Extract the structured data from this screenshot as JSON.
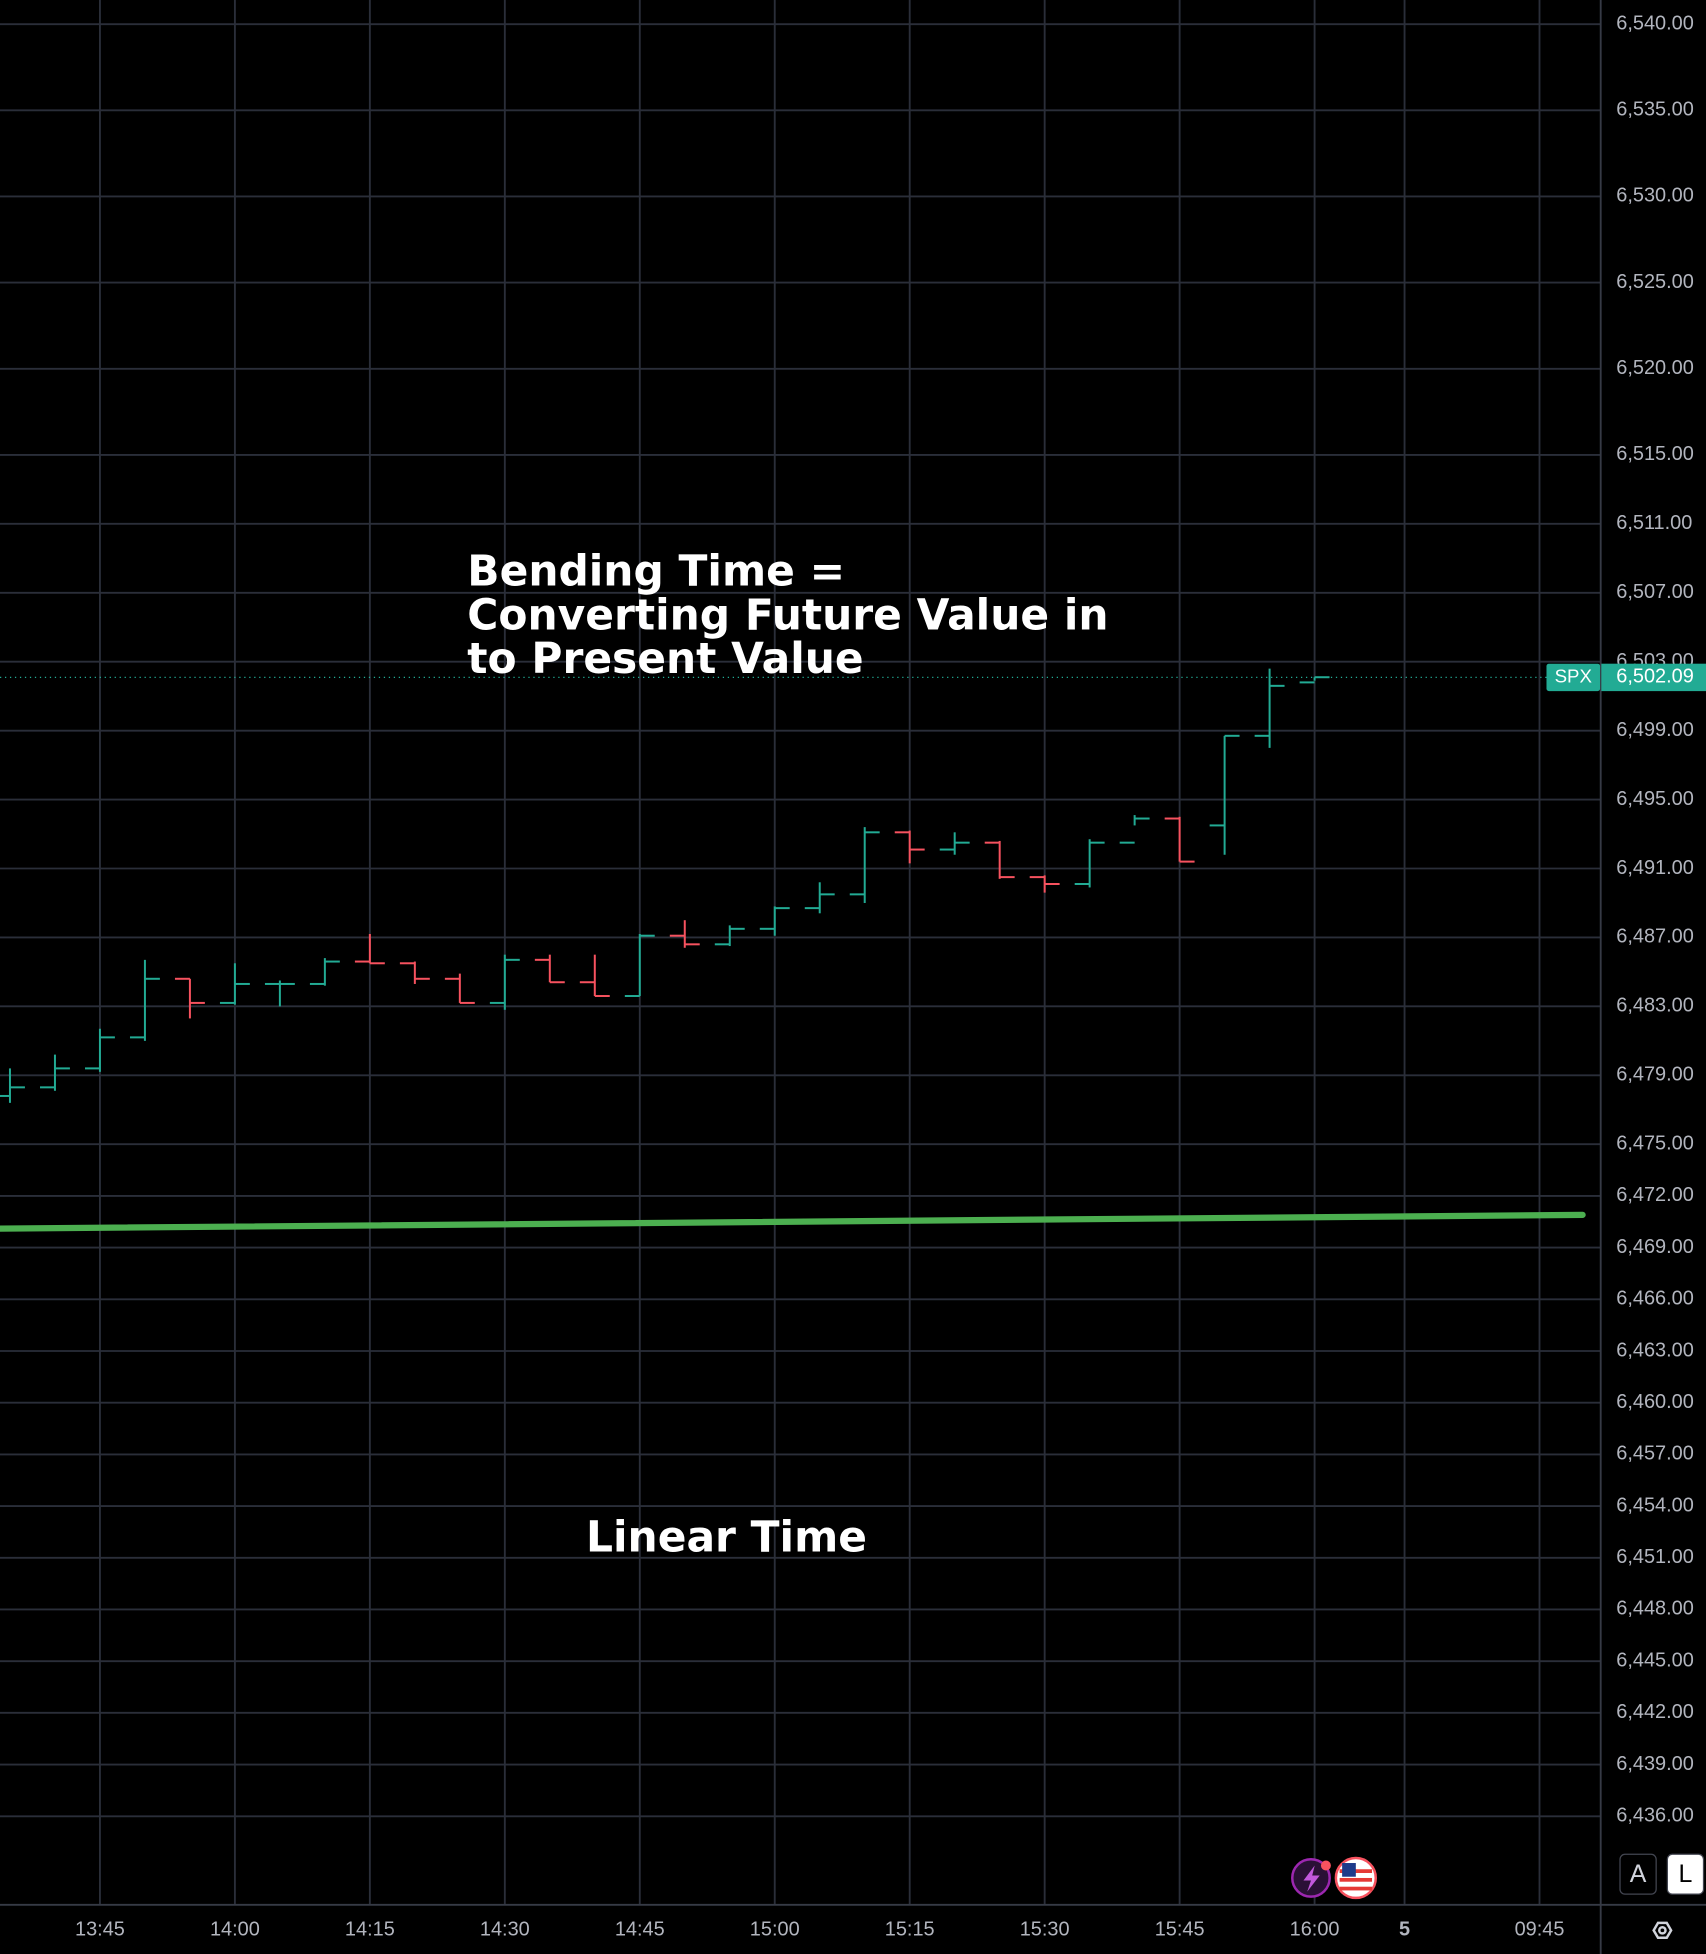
{
  "chart_data": {
    "type": "ohlc",
    "symbol": "SPX",
    "categories": [
      null,
      null,
      "13:45",
      null,
      null,
      "14:00",
      null,
      null,
      "14:15",
      null,
      null,
      "14:30",
      null,
      null,
      "14:45",
      null,
      null,
      "15:00",
      null,
      null,
      "15:15",
      null,
      null,
      "15:30",
      null,
      null,
      "15:45",
      null,
      null,
      "16:00",
      null,
      "5",
      null,
      null,
      "09:45"
    ],
    "open": [
      6477.8,
      6478.3,
      6479.4,
      6481.2,
      6484.6,
      6483.2,
      6484.3,
      6484.3,
      6485.6,
      6485.5,
      6484.6,
      6483.2,
      6485.7,
      6484.4,
      6483.6,
      6487.1,
      6486.6,
      6487.5,
      6488.7,
      6489.5,
      6493.1,
      6492.1,
      6492.5,
      6490.5,
      6490.1,
      6492.5,
      6493.9,
      6493.5,
      6498.7,
      6501.8,
      null,
      null,
      null,
      null,
      null
    ],
    "high": [
      6479.4,
      6480.2,
      6481.7,
      6485.7,
      6484.6,
      6485.5,
      6484.5,
      6485.8,
      6487.2,
      6485.6,
      6484.9,
      6486.0,
      6486.0,
      6486.0,
      6487.2,
      6488.0,
      6487.7,
      6488.8,
      6490.2,
      6493.4,
      6493.2,
      6493.1,
      6492.6,
      6490.6,
      6492.7,
      6494.1,
      6494.0,
      6498.7,
      6502.6,
      6502.1,
      null,
      null,
      null,
      null,
      null
    ],
    "low": [
      6477.4,
      6478.1,
      6479.2,
      6481.0,
      6482.3,
      6483.1,
      6483.0,
      6484.2,
      6485.5,
      6484.3,
      6483.2,
      6482.8,
      6484.4,
      6483.6,
      6483.6,
      6486.4,
      6486.5,
      6487.1,
      6488.4,
      6489.0,
      6491.3,
      6491.8,
      6490.4,
      6489.6,
      6489.9,
      6493.5,
      6491.4,
      6491.8,
      6498.0,
      6501.9,
      null,
      null,
      null,
      null,
      null
    ],
    "close": [
      6478.3,
      6479.4,
      6481.2,
      6484.6,
      6483.2,
      6484.3,
      6484.3,
      6485.6,
      6485.5,
      6484.6,
      6483.2,
      6485.7,
      6484.4,
      6483.6,
      6487.1,
      6486.6,
      6487.5,
      6488.7,
      6489.5,
      6493.1,
      6492.1,
      6492.5,
      6490.5,
      6490.1,
      6492.5,
      6493.9,
      6491.4,
      6498.7,
      6501.6,
      6502.1,
      null,
      null,
      null,
      null,
      null
    ],
    "up_color": "#22ab94",
    "down_color": "#f7525f",
    "ylim": [
      6430.9,
      6541.4
    ],
    "yticks": [
      {
        "value": 6540,
        "label": "6,540.00"
      },
      {
        "value": 6535,
        "label": "6,535.00"
      },
      {
        "value": 6530,
        "label": "6,530.00"
      },
      {
        "value": 6525,
        "label": "6,525.00"
      },
      {
        "value": 6520,
        "label": "6,520.00"
      },
      {
        "value": 6515,
        "label": "6,515.00"
      },
      {
        "value": 6511,
        "label": "6,511.00"
      },
      {
        "value": 6507,
        "label": "6,507.00"
      },
      {
        "value": 6503,
        "label": "6,503.00"
      },
      {
        "value": 6499,
        "label": "6,499.00"
      },
      {
        "value": 6495,
        "label": "6,495.00"
      },
      {
        "value": 6491,
        "label": "6,491.00"
      },
      {
        "value": 6487,
        "label": "6,487.00"
      },
      {
        "value": 6483,
        "label": "6,483.00"
      },
      {
        "value": 6479,
        "label": "6,479.00"
      },
      {
        "value": 6475,
        "label": "6,475.00"
      },
      {
        "value": 6472,
        "label": "6,472.00"
      },
      {
        "value": 6469,
        "label": "6,469.00"
      },
      {
        "value": 6466,
        "label": "6,466.00"
      },
      {
        "value": 6463,
        "label": "6,463.00"
      },
      {
        "value": 6460,
        "label": "6,460.00"
      },
      {
        "value": 6457,
        "label": "6,457.00"
      },
      {
        "value": 6454,
        "label": "6,454.00"
      },
      {
        "value": 6451,
        "label": "6,451.00"
      },
      {
        "value": 6448,
        "label": "6,448.00"
      },
      {
        "value": 6445,
        "label": "6,445.00"
      },
      {
        "value": 6442,
        "label": "6,442.00"
      },
      {
        "value": 6439,
        "label": "6,439.00"
      },
      {
        "value": 6436,
        "label": "6,436.00"
      }
    ],
    "grid": true,
    "last_price": {
      "value": 6502.09,
      "label": "6,502.09"
    },
    "trend_line": {
      "color": "#4caf50",
      "values": [
        6470.1,
        6470.9
      ]
    },
    "annotations": [
      {
        "lines": [
          "Bending Time =",
          "Converting Future Value in",
          "to Present Value"
        ]
      },
      {
        "lines": [
          "Linear Time"
        ]
      }
    ]
  },
  "ui": {
    "buttons": [
      "A",
      "L"
    ]
  }
}
